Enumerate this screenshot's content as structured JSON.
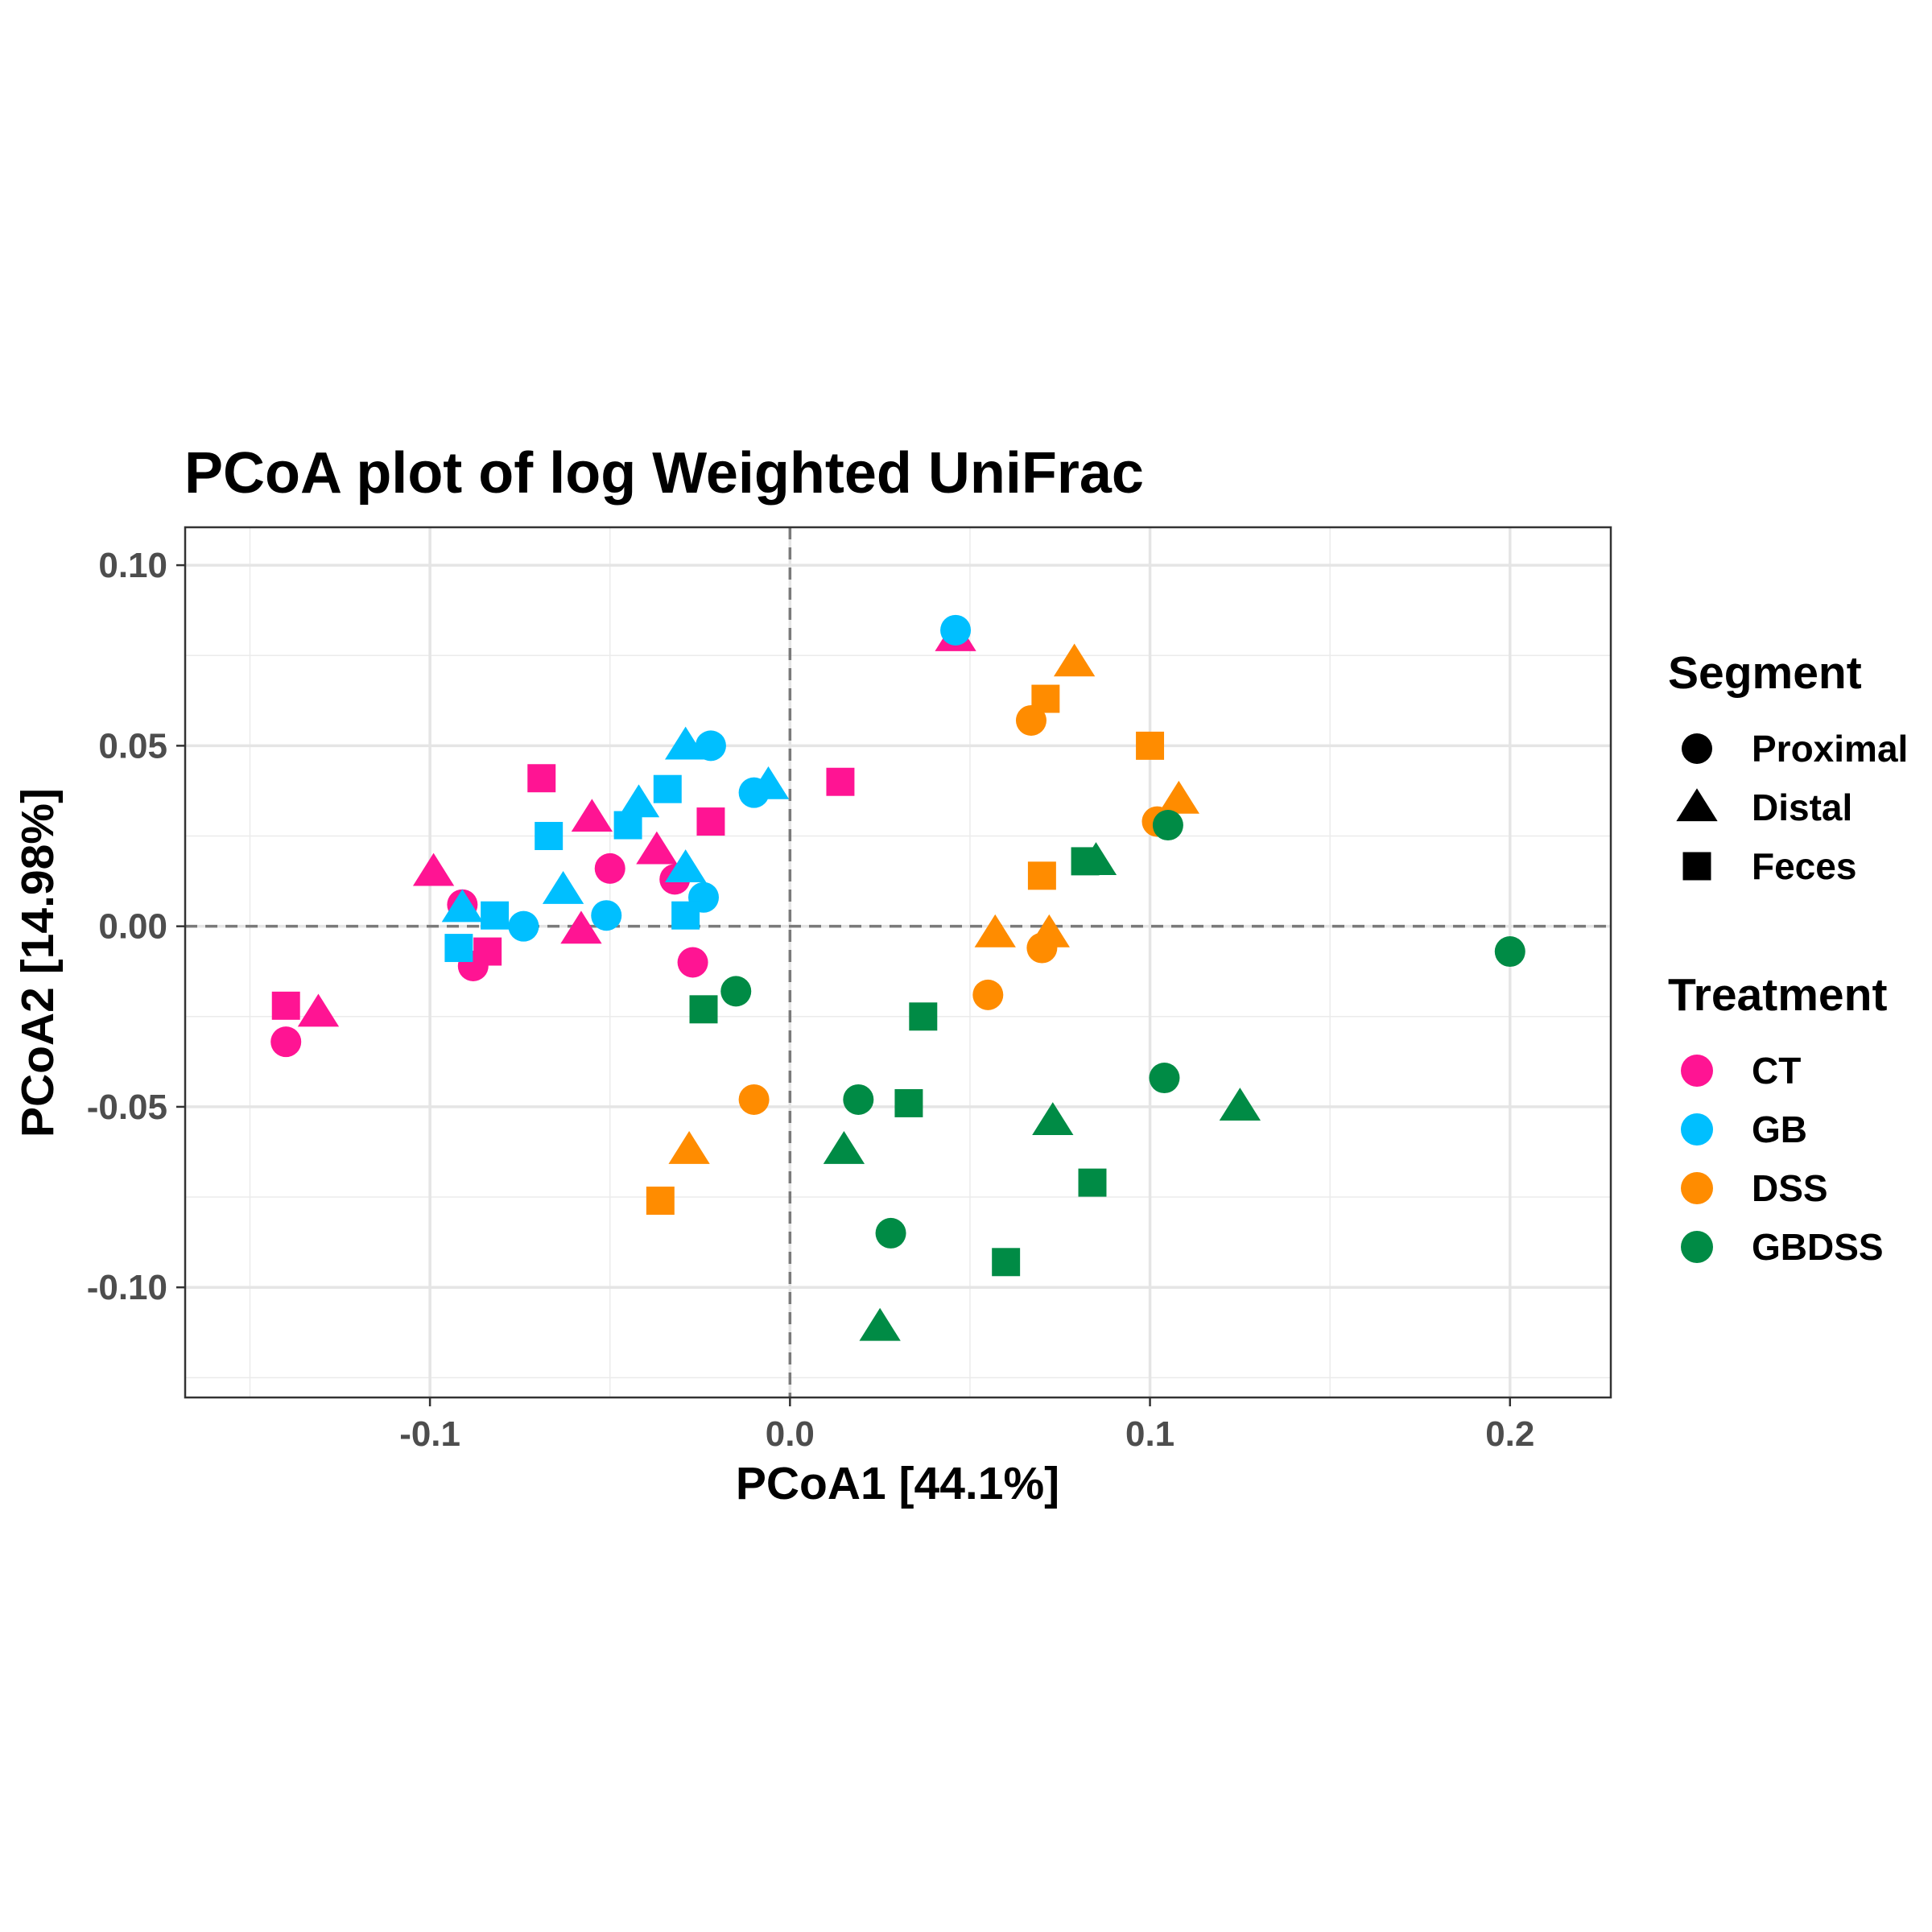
{
  "chart_data": {
    "type": "scatter",
    "title": "PCoA plot of log Weighted UniFrac",
    "xlabel": "PCoA1 [44.1%]",
    "ylabel": "PCoA2 [14.98%]",
    "xlim": [
      -0.168,
      0.228
    ],
    "ylim": [
      -0.1305,
      0.1105
    ],
    "x_ticks": [
      -0.1,
      0.0,
      0.1,
      0.2
    ],
    "x_tick_labels": [
      "-0.1",
      "0.0",
      "0.1",
      "0.2"
    ],
    "y_ticks": [
      -0.1,
      -0.05,
      0.0,
      0.05,
      0.1
    ],
    "y_tick_labels": [
      "-0.10",
      "-0.05",
      "0.00",
      "0.05",
      "0.10"
    ],
    "x_minor_ticks": [
      -0.15,
      -0.05,
      0.05,
      0.15
    ],
    "y_minor_ticks": [
      -0.125,
      -0.075,
      -0.025,
      0.025,
      0.075
    ],
    "grid": true,
    "reference_lines": {
      "x": 0,
      "y": 0,
      "style": "dashed"
    },
    "legend_position": "right",
    "legends": {
      "shape": {
        "title": "Segment",
        "items": [
          {
            "label": "Proximal",
            "shape": "circle"
          },
          {
            "label": "Distal",
            "shape": "triangle"
          },
          {
            "label": "Feces",
            "shape": "square"
          }
        ]
      },
      "color": {
        "title": "Treatment",
        "items": [
          {
            "label": "CT",
            "color": "#ff1493"
          },
          {
            "label": "GB",
            "color": "#00bfff"
          },
          {
            "label": "DSS",
            "color": "#ff8c00"
          },
          {
            "label": "GBDSS",
            "color": "#008b45"
          }
        ]
      }
    },
    "points": [
      {
        "x": -0.14,
        "y": -0.032,
        "segment": "Proximal",
        "treatment": "CT"
      },
      {
        "x": -0.091,
        "y": 0.006,
        "segment": "Proximal",
        "treatment": "CT"
      },
      {
        "x": -0.088,
        "y": -0.011,
        "segment": "Proximal",
        "treatment": "CT"
      },
      {
        "x": -0.05,
        "y": 0.016,
        "segment": "Proximal",
        "treatment": "CT"
      },
      {
        "x": -0.032,
        "y": 0.013,
        "segment": "Proximal",
        "treatment": "CT"
      },
      {
        "x": -0.027,
        "y": -0.01,
        "segment": "Proximal",
        "treatment": "CT"
      },
      {
        "x": -0.131,
        "y": -0.024,
        "segment": "Distal",
        "treatment": "CT"
      },
      {
        "x": -0.099,
        "y": 0.015,
        "segment": "Distal",
        "treatment": "CT"
      },
      {
        "x": -0.055,
        "y": 0.03,
        "segment": "Distal",
        "treatment": "CT"
      },
      {
        "x": -0.058,
        "y": -0.001,
        "segment": "Distal",
        "treatment": "CT"
      },
      {
        "x": -0.037,
        "y": 0.021,
        "segment": "Distal",
        "treatment": "CT"
      },
      {
        "x": 0.046,
        "y": 0.08,
        "segment": "Distal",
        "treatment": "CT"
      },
      {
        "x": -0.14,
        "y": -0.022,
        "segment": "Feces",
        "treatment": "CT"
      },
      {
        "x": -0.084,
        "y": -0.007,
        "segment": "Feces",
        "treatment": "CT"
      },
      {
        "x": -0.069,
        "y": 0.041,
        "segment": "Feces",
        "treatment": "CT"
      },
      {
        "x": -0.022,
        "y": 0.029,
        "segment": "Feces",
        "treatment": "CT"
      },
      {
        "x": 0.014,
        "y": 0.04,
        "segment": "Feces",
        "treatment": "CT"
      },
      {
        "x": -0.074,
        "y": 0.0,
        "segment": "Proximal",
        "treatment": "GB"
      },
      {
        "x": -0.051,
        "y": 0.003,
        "segment": "Proximal",
        "treatment": "GB"
      },
      {
        "x": -0.024,
        "y": 0.008,
        "segment": "Proximal",
        "treatment": "GB"
      },
      {
        "x": -0.022,
        "y": 0.05,
        "segment": "Proximal",
        "treatment": "GB"
      },
      {
        "x": -0.01,
        "y": 0.037,
        "segment": "Proximal",
        "treatment": "GB"
      },
      {
        "x": 0.046,
        "y": 0.082,
        "segment": "Proximal",
        "treatment": "GB"
      },
      {
        "x": -0.091,
        "y": 0.005,
        "segment": "Distal",
        "treatment": "GB"
      },
      {
        "x": -0.063,
        "y": 0.01,
        "segment": "Distal",
        "treatment": "GB"
      },
      {
        "x": -0.042,
        "y": 0.034,
        "segment": "Distal",
        "treatment": "GB"
      },
      {
        "x": -0.029,
        "y": 0.05,
        "segment": "Distal",
        "treatment": "GB"
      },
      {
        "x": -0.029,
        "y": 0.016,
        "segment": "Distal",
        "treatment": "GB"
      },
      {
        "x": -0.006,
        "y": 0.039,
        "segment": "Distal",
        "treatment": "GB"
      },
      {
        "x": -0.092,
        "y": -0.006,
        "segment": "Feces",
        "treatment": "GB"
      },
      {
        "x": -0.082,
        "y": 0.003,
        "segment": "Feces",
        "treatment": "GB"
      },
      {
        "x": -0.067,
        "y": 0.025,
        "segment": "Feces",
        "treatment": "GB"
      },
      {
        "x": -0.045,
        "y": 0.028,
        "segment": "Feces",
        "treatment": "GB"
      },
      {
        "x": -0.034,
        "y": 0.038,
        "segment": "Feces",
        "treatment": "GB"
      },
      {
        "x": -0.029,
        "y": 0.003,
        "segment": "Feces",
        "treatment": "GB"
      },
      {
        "x": -0.01,
        "y": -0.048,
        "segment": "Proximal",
        "treatment": "DSS"
      },
      {
        "x": 0.055,
        "y": -0.019,
        "segment": "Proximal",
        "treatment": "DSS"
      },
      {
        "x": 0.067,
        "y": 0.057,
        "segment": "Proximal",
        "treatment": "DSS"
      },
      {
        "x": 0.07,
        "y": -0.006,
        "segment": "Proximal",
        "treatment": "DSS"
      },
      {
        "x": 0.102,
        "y": 0.029,
        "segment": "Proximal",
        "treatment": "DSS"
      },
      {
        "x": -0.028,
        "y": -0.062,
        "segment": "Distal",
        "treatment": "DSS"
      },
      {
        "x": 0.057,
        "y": -0.002,
        "segment": "Distal",
        "treatment": "DSS"
      },
      {
        "x": 0.072,
        "y": -0.002,
        "segment": "Distal",
        "treatment": "DSS"
      },
      {
        "x": 0.079,
        "y": 0.073,
        "segment": "Distal",
        "treatment": "DSS"
      },
      {
        "x": 0.108,
        "y": 0.035,
        "segment": "Distal",
        "treatment": "DSS"
      },
      {
        "x": -0.036,
        "y": -0.076,
        "segment": "Feces",
        "treatment": "DSS"
      },
      {
        "x": 0.07,
        "y": 0.014,
        "segment": "Feces",
        "treatment": "DSS"
      },
      {
        "x": 0.071,
        "y": 0.063,
        "segment": "Feces",
        "treatment": "DSS"
      },
      {
        "x": 0.1,
        "y": 0.05,
        "segment": "Feces",
        "treatment": "DSS"
      },
      {
        "x": -0.015,
        "y": -0.018,
        "segment": "Proximal",
        "treatment": "GBDSS"
      },
      {
        "x": 0.019,
        "y": -0.048,
        "segment": "Proximal",
        "treatment": "GBDSS"
      },
      {
        "x": 0.028,
        "y": -0.085,
        "segment": "Proximal",
        "treatment": "GBDSS"
      },
      {
        "x": 0.104,
        "y": -0.042,
        "segment": "Proximal",
        "treatment": "GBDSS"
      },
      {
        "x": 0.105,
        "y": 0.028,
        "segment": "Proximal",
        "treatment": "GBDSS"
      },
      {
        "x": 0.2,
        "y": -0.007,
        "segment": "Proximal",
        "treatment": "GBDSS"
      },
      {
        "x": 0.015,
        "y": -0.062,
        "segment": "Distal",
        "treatment": "GBDSS"
      },
      {
        "x": 0.025,
        "y": -0.111,
        "segment": "Distal",
        "treatment": "GBDSS"
      },
      {
        "x": 0.073,
        "y": -0.054,
        "segment": "Distal",
        "treatment": "GBDSS"
      },
      {
        "x": 0.085,
        "y": 0.018,
        "segment": "Distal",
        "treatment": "GBDSS"
      },
      {
        "x": 0.125,
        "y": -0.05,
        "segment": "Distal",
        "treatment": "GBDSS"
      },
      {
        "x": -0.024,
        "y": -0.023,
        "segment": "Feces",
        "treatment": "GBDSS"
      },
      {
        "x": 0.033,
        "y": -0.049,
        "segment": "Feces",
        "treatment": "GBDSS"
      },
      {
        "x": 0.037,
        "y": -0.025,
        "segment": "Feces",
        "treatment": "GBDSS"
      },
      {
        "x": 0.06,
        "y": -0.093,
        "segment": "Feces",
        "treatment": "GBDSS"
      },
      {
        "x": 0.082,
        "y": 0.018,
        "segment": "Feces",
        "treatment": "GBDSS"
      },
      {
        "x": 0.084,
        "y": -0.071,
        "segment": "Feces",
        "treatment": "GBDSS"
      }
    ]
  }
}
